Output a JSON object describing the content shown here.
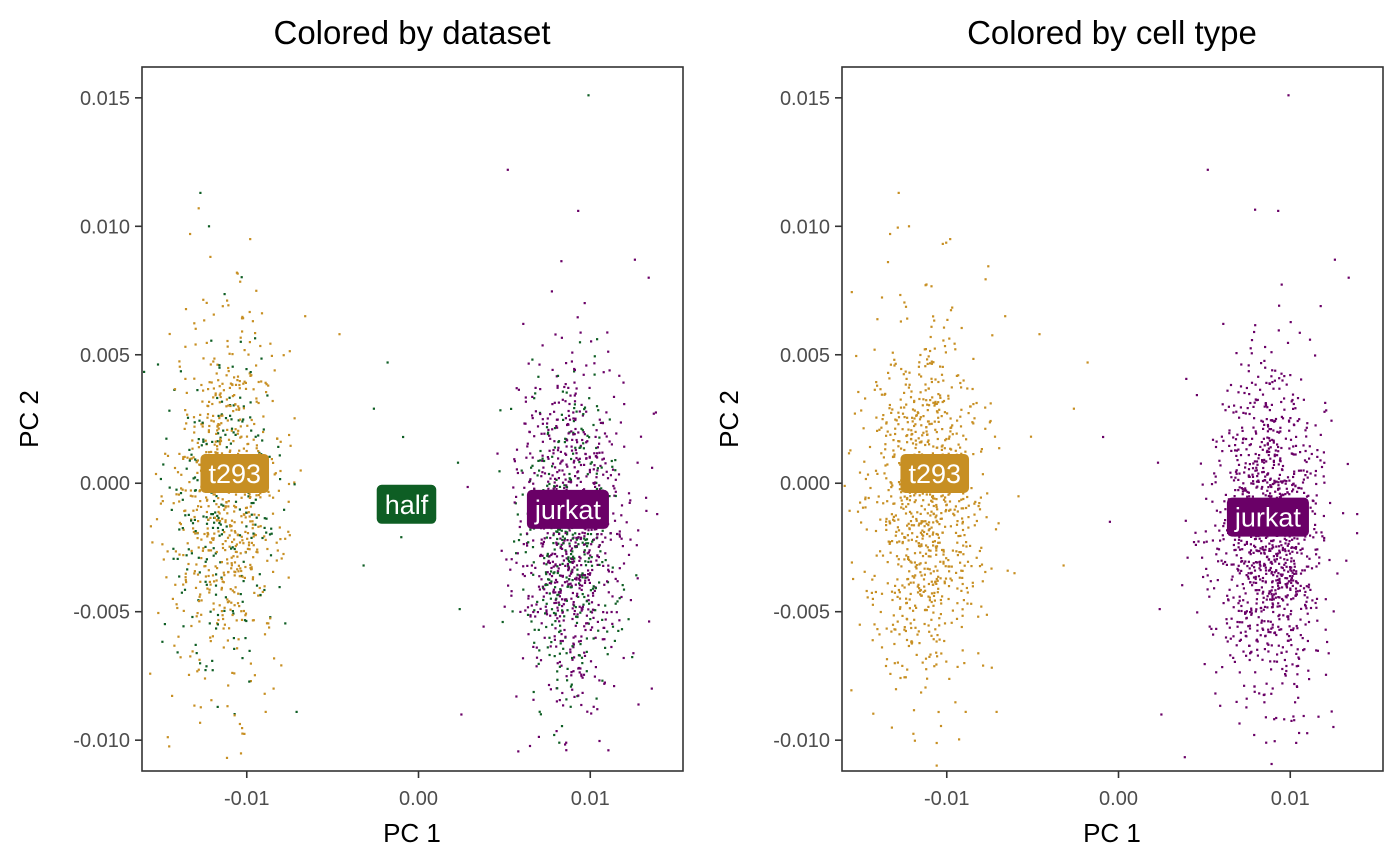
{
  "chart_data": [
    {
      "type": "scatter",
      "title": "Colored by dataset",
      "xlabel": "PC 1",
      "ylabel": "PC 2",
      "xlim": [
        -0.0161,
        0.0154
      ],
      "ylim": [
        -0.0112,
        0.0162
      ],
      "xticks": [
        -0.01,
        0.0,
        0.01
      ],
      "xtick_labels": [
        "-0.01",
        "0.00",
        "0.01"
      ],
      "yticks": [
        0.015,
        0.01,
        0.005,
        0.0,
        -0.005,
        -0.01
      ],
      "ytick_labels": [
        "0.015",
        "0.010",
        "0.005",
        "0.000",
        "-0.005",
        "-0.010"
      ],
      "grid": false,
      "legend": "none",
      "series": [
        {
          "name": "t293",
          "color": "#C78F23",
          "clusters": [
            {
              "center": [
                -0.0112,
                -0.0005
              ],
              "sd": [
                0.0017,
                0.0034
              ],
              "count": 700
            }
          ],
          "points": [
            [
              -0.0133,
              0.0097
            ],
            [
              -0.0128,
              0.0107
            ],
            [
              -0.0098,
              0.0095
            ],
            [
              -0.0066,
              0.0065
            ],
            [
              -0.0046,
              0.0058
            ],
            [
              -0.0143,
              -0.0045
            ],
            [
              -0.0089,
              -0.0089
            ],
            [
              -0.0124,
              0.0011
            ]
          ]
        },
        {
          "name": "half",
          "color": "#0E5E24",
          "clusters": [
            {
              "center": [
                -0.0112,
                -0.0008
              ],
              "sd": [
                0.0016,
                0.0033
              ],
              "count": 250
            },
            {
              "center": [
                0.0088,
                -0.0022
              ],
              "sd": [
                0.0015,
                0.003
              ],
              "count": 400
            }
          ],
          "points": [
            [
              0.0099,
              0.0151
            ],
            [
              -0.0127,
              0.0113
            ],
            [
              -0.0122,
              0.01
            ],
            [
              -0.0026,
              0.0029
            ],
            [
              -0.0018,
              0.0047
            ],
            [
              -0.0009,
              0.0018
            ],
            [
              -0.0032,
              -0.0032
            ],
            [
              -0.001,
              -0.0021
            ],
            [
              0.0024,
              -0.0049
            ],
            [
              0.0049,
              -0.0054
            ],
            [
              -0.0005,
              -0.0015
            ],
            [
              0.0023,
              0.0008
            ],
            [
              -0.0071,
              -0.0089
            ],
            [
              0.0079,
              -0.0098
            ],
            [
              0.0082,
              -0.0101
            ]
          ]
        },
        {
          "name": "jurkat",
          "color": "#6A0067",
          "clusters": [
            {
              "center": [
                0.0088,
                -0.0018
              ],
              "sd": [
                0.0016,
                0.0032
              ],
              "count": 800
            }
          ],
          "points": [
            [
              0.0052,
              0.0122
            ],
            [
              0.0093,
              0.0106
            ],
            [
              0.0134,
              0.008
            ],
            [
              0.0126,
              0.0087
            ],
            [
              0.0025,
              -0.009
            ],
            [
              0.0086,
              -0.0101
            ],
            [
              0.0061,
              0.0062
            ],
            [
              0.0139,
              -0.0012
            ],
            [
              0.0136,
              0.0006
            ],
            [
              0.0057,
              -0.0083
            ],
            [
              0.0102,
              -0.0087
            ]
          ]
        }
      ],
      "annotations": [
        {
          "text": "t293",
          "x": -0.0107,
          "y": 0.0004,
          "fill": "#C78F23"
        },
        {
          "text": "half",
          "x": -0.0007,
          "y": -0.0008,
          "fill": "#0E5E24"
        },
        {
          "text": "jurkat",
          "x": 0.0087,
          "y": -0.001,
          "fill": "#6A0067"
        }
      ]
    },
    {
      "type": "scatter",
      "title": "Colored by cell type",
      "xlabel": "PC 1",
      "ylabel": "PC 2",
      "xlim": [
        -0.0161,
        0.0154
      ],
      "ylim": [
        -0.0112,
        0.0162
      ],
      "xticks": [
        -0.01,
        0.0,
        0.01
      ],
      "xtick_labels": [
        "-0.01",
        "0.00",
        "0.01"
      ],
      "yticks": [
        0.015,
        0.01,
        0.005,
        0.0,
        -0.005,
        -0.01
      ],
      "ytick_labels": [
        "0.015",
        "0.010",
        "0.005",
        "0.000",
        "-0.005",
        "-0.010"
      ],
      "grid": false,
      "legend": "none",
      "series": [
        {
          "name": "t293",
          "color": "#C78F23",
          "clusters": [
            {
              "center": [
                -0.0112,
                -0.0006
              ],
              "sd": [
                0.0017,
                0.0034
              ],
              "count": 950
            }
          ],
          "points": [
            [
              -0.0133,
              0.0097
            ],
            [
              -0.0128,
              0.0113
            ],
            [
              -0.0122,
              0.01
            ],
            [
              -0.0098,
              0.0095
            ],
            [
              -0.0066,
              0.0065
            ],
            [
              -0.0046,
              0.0058
            ],
            [
              -0.0026,
              0.0029
            ],
            [
              -0.0018,
              0.0047
            ],
            [
              -0.0143,
              -0.0045
            ],
            [
              -0.0089,
              -0.0089
            ],
            [
              -0.0071,
              -0.0089
            ],
            [
              -0.0032,
              -0.0032
            ]
          ]
        },
        {
          "name": "jurkat",
          "color": "#6A0067",
          "clusters": [
            {
              "center": [
                0.0088,
                -0.002
              ],
              "sd": [
                0.0016,
                0.0032
              ],
              "count": 1200
            }
          ],
          "points": [
            [
              0.0099,
              0.0151
            ],
            [
              0.0052,
              0.0122
            ],
            [
              0.0093,
              0.0106
            ],
            [
              0.0134,
              0.008
            ],
            [
              0.0126,
              0.0087
            ],
            [
              0.0025,
              -0.009
            ],
            [
              0.0086,
              -0.0101
            ],
            [
              0.0079,
              -0.0098
            ],
            [
              0.0061,
              0.0062
            ],
            [
              0.0139,
              -0.0012
            ],
            [
              0.0024,
              -0.0049
            ],
            [
              -0.0009,
              0.0018
            ],
            [
              0.0023,
              0.0008
            ],
            [
              -0.0005,
              -0.0015
            ]
          ]
        }
      ],
      "annotations": [
        {
          "text": "t293",
          "x": -0.0107,
          "y": 0.0004,
          "fill": "#C78F23"
        },
        {
          "text": "jurkat",
          "x": 0.0087,
          "y": -0.0013,
          "fill": "#6A0067"
        }
      ]
    }
  ]
}
